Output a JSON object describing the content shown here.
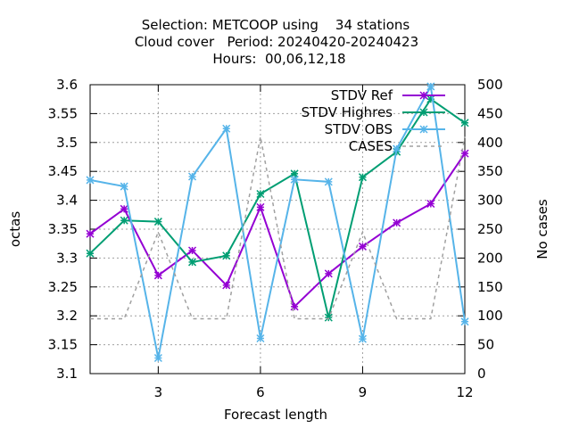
{
  "chart_data": {
    "type": "line",
    "title_lines": [
      "Selection: METCOOP using    34 stations",
      "Cloud cover   Period: 20240420-20240423",
      "Hours:  00,06,12,18"
    ],
    "xlabel": "Forecast length",
    "ylabel": "octas",
    "y2label": "No cases",
    "x": [
      1,
      2,
      3,
      4,
      5,
      6,
      7,
      8,
      9,
      10,
      11,
      12
    ],
    "xlim": [
      1,
      12
    ],
    "ylim": [
      3.1,
      3.6
    ],
    "y2lim": [
      0,
      500
    ],
    "xticks": [
      3,
      6,
      9,
      12
    ],
    "yticks": [
      "3.1",
      "3.15",
      "3.2",
      "3.25",
      "3.3",
      "3.35",
      "3.4",
      "3.45",
      "3.5",
      "3.55",
      "3.6"
    ],
    "y2ticks": [
      "0",
      "50",
      "100",
      "150",
      "200",
      "250",
      "300",
      "350",
      "400",
      "450",
      "500"
    ],
    "grid": true,
    "legend_position": "top-right",
    "series": [
      {
        "name": "STDV Ref",
        "color": "#9400d3",
        "axis": "y1",
        "dash": "solid",
        "values": [
          3.342,
          3.385,
          3.27,
          3.313,
          3.253,
          3.388,
          3.216,
          3.273,
          3.32,
          3.361,
          3.394,
          3.481
        ]
      },
      {
        "name": "STDV Highres",
        "color": "#009e73",
        "axis": "y1",
        "dash": "solid",
        "values": [
          3.308,
          3.365,
          3.363,
          3.293,
          3.304,
          3.411,
          3.446,
          3.197,
          3.44,
          3.484,
          3.575,
          3.534
        ]
      },
      {
        "name": "STDV OBS",
        "color": "#56b4e9",
        "axis": "y1",
        "dash": "solid",
        "values": [
          3.435,
          3.424,
          3.127,
          3.441,
          3.524,
          3.161,
          3.436,
          3.432,
          3.16,
          3.489,
          3.597,
          3.19
        ]
      },
      {
        "name": "CASES",
        "color": "#a0a0a0",
        "axis": "y2",
        "dash": "dashed",
        "values": [
          95,
          95,
          245,
          95,
          95,
          410,
          95,
          95,
          245,
          95,
          95,
          410
        ]
      }
    ]
  }
}
